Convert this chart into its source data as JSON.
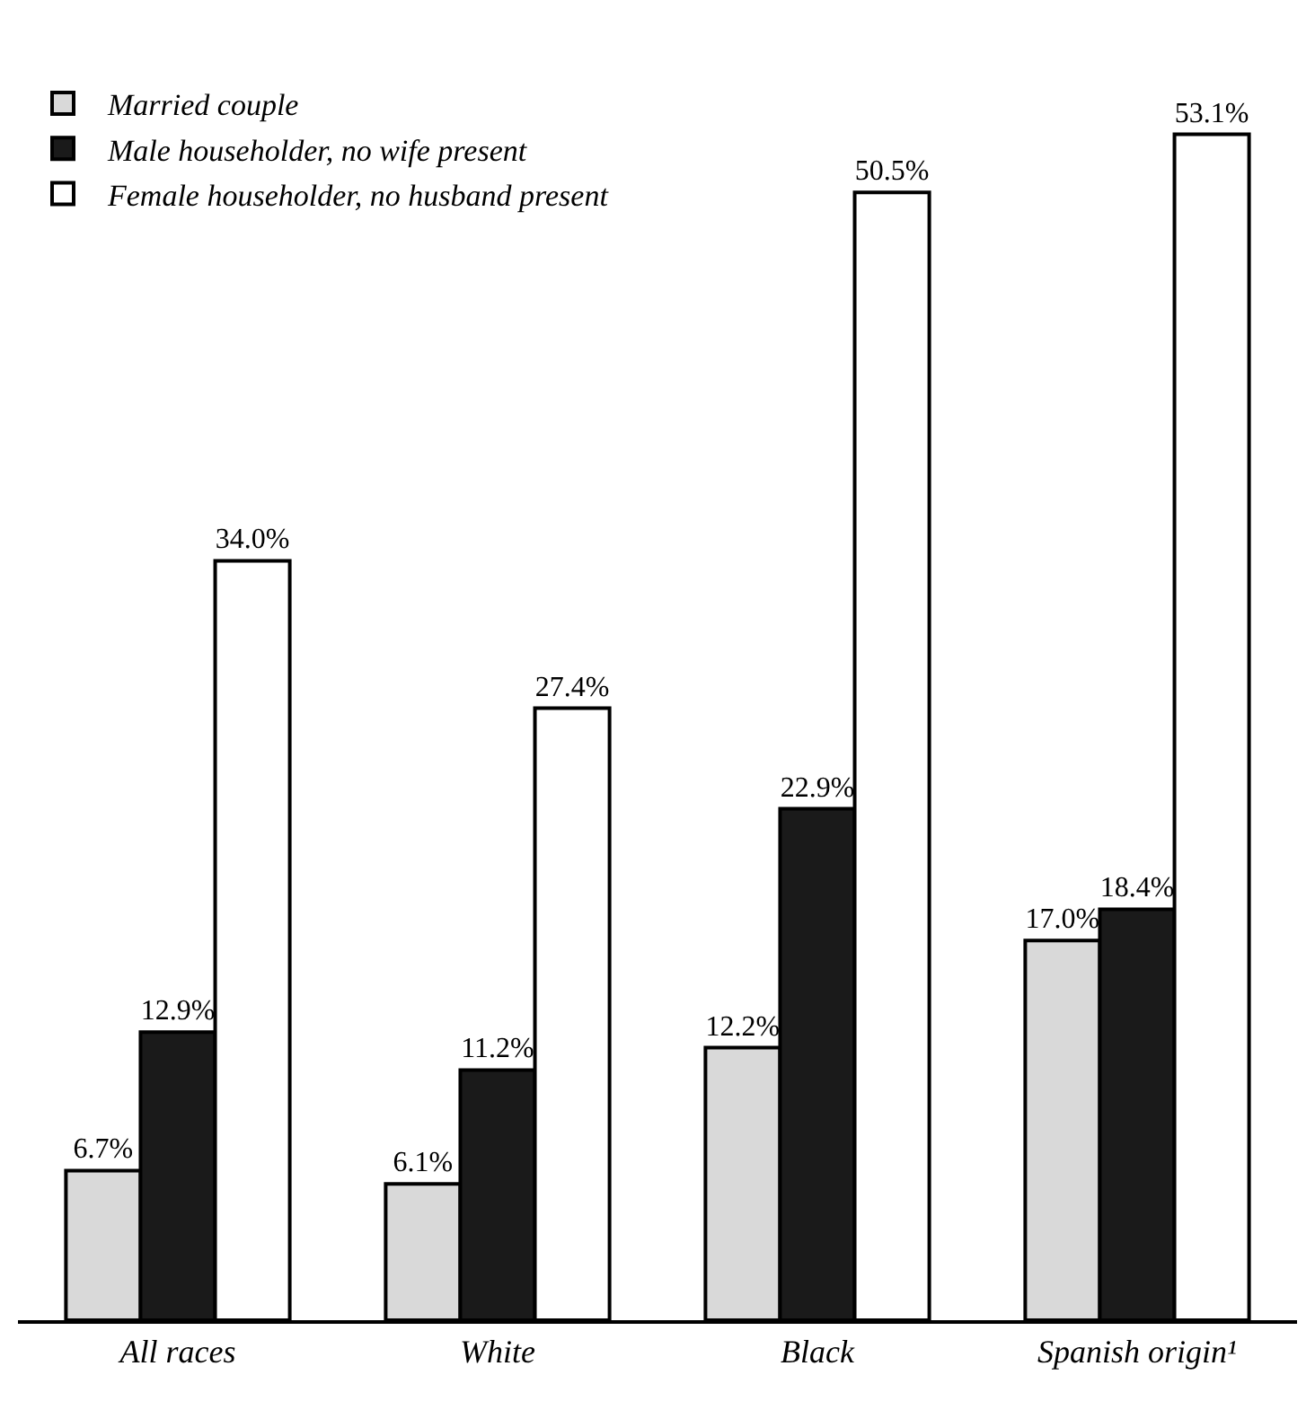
{
  "chart_data": {
    "type": "bar",
    "categories": [
      "All races",
      "White",
      "Black",
      "Spanish origin¹"
    ],
    "series": [
      {
        "name": "Married couple",
        "color": "#d9d9d9",
        "values": [
          6.7,
          6.1,
          12.2,
          17.0
        ],
        "value_labels": [
          "6.7%",
          "6.1%",
          "12.2%",
          "17.0%"
        ]
      },
      {
        "name": "Male householder, no wife present",
        "color": "#1a1a1a",
        "values": [
          12.9,
          11.2,
          22.9,
          18.4
        ],
        "value_labels": [
          "12.9%",
          "11.2%",
          "22.9%",
          "18.4%"
        ]
      },
      {
        "name": "Female householder, no husband present",
        "color": "#ffffff",
        "values": [
          34.0,
          27.4,
          50.5,
          53.1
        ],
        "value_labels": [
          "34.0%",
          "27.4%",
          "50.5%",
          "53.1%"
        ]
      }
    ],
    "legend": "top left",
    "grid": false
  }
}
